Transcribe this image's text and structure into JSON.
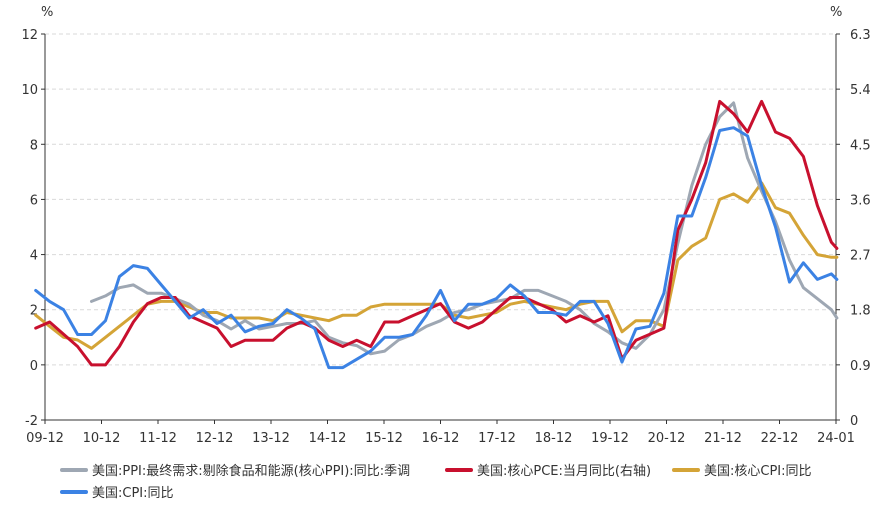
{
  "chart_data": {
    "type": "line",
    "left_axis": {
      "unit": "%",
      "min": -2,
      "max": 12,
      "ticks": [
        "-2",
        "0",
        "2",
        "4",
        "6",
        "8",
        "10",
        "12"
      ]
    },
    "right_axis": {
      "unit": "%",
      "min": 0,
      "max": 6.3,
      "ticks": [
        "0",
        "0.9",
        "1.8",
        "2.7",
        "3.6",
        "4.5",
        "5.4",
        "6.3"
      ]
    },
    "x_labels": [
      "09-12",
      "10-12",
      "11-12",
      "12-12",
      "13-12",
      "14-12",
      "15-12",
      "16-12",
      "17-12",
      "18-12",
      "19-12",
      "20-12",
      "21-12",
      "22-12",
      "24-01"
    ],
    "grid": "horizontal dashed",
    "legend_position": "bottom",
    "series": [
      {
        "name": "美国:PPI:最终需求:剔除食品和能源(核心PPI):同比:季调",
        "color": "#9ea7b3",
        "axis": "left",
        "start": 2010.75,
        "points": [
          [
            2010.75,
            2.3
          ],
          [
            2011.0,
            2.5
          ],
          [
            2011.25,
            2.8
          ],
          [
            2011.5,
            2.9
          ],
          [
            2011.75,
            2.6
          ],
          [
            2012.0,
            2.6
          ],
          [
            2012.25,
            2.4
          ],
          [
            2012.5,
            2.2
          ],
          [
            2012.75,
            1.8
          ],
          [
            2013.0,
            1.6
          ],
          [
            2013.25,
            1.3
          ],
          [
            2013.5,
            1.6
          ],
          [
            2013.75,
            1.3
          ],
          [
            2014.0,
            1.4
          ],
          [
            2014.25,
            1.5
          ],
          [
            2014.5,
            1.5
          ],
          [
            2014.75,
            1.6
          ],
          [
            2015.0,
            1.0
          ],
          [
            2015.25,
            0.8
          ],
          [
            2015.5,
            0.7
          ],
          [
            2015.75,
            0.4
          ],
          [
            2016.0,
            0.5
          ],
          [
            2016.25,
            0.9
          ],
          [
            2016.5,
            1.1
          ],
          [
            2016.75,
            1.4
          ],
          [
            2017.0,
            1.6
          ],
          [
            2017.25,
            1.9
          ],
          [
            2017.5,
            2.0
          ],
          [
            2017.75,
            2.2
          ],
          [
            2018.0,
            2.3
          ],
          [
            2018.25,
            2.4
          ],
          [
            2018.5,
            2.7
          ],
          [
            2018.75,
            2.7
          ],
          [
            2019.0,
            2.5
          ],
          [
            2019.25,
            2.3
          ],
          [
            2019.5,
            2.0
          ],
          [
            2019.75,
            1.5
          ],
          [
            2020.0,
            1.2
          ],
          [
            2020.25,
            0.8
          ],
          [
            2020.5,
            0.6
          ],
          [
            2020.75,
            1.1
          ],
          [
            2021.0,
            2.0
          ],
          [
            2021.25,
            4.4
          ],
          [
            2021.5,
            6.5
          ],
          [
            2021.75,
            8.0
          ],
          [
            2022.0,
            9.0
          ],
          [
            2022.25,
            9.5
          ],
          [
            2022.5,
            7.5
          ],
          [
            2022.75,
            6.3
          ],
          [
            2023.0,
            5.2
          ],
          [
            2023.25,
            3.8
          ],
          [
            2023.5,
            2.8
          ],
          [
            2023.75,
            2.4
          ],
          [
            2024.0,
            2.0
          ],
          [
            2024.1,
            1.7
          ]
        ]
      },
      {
        "name": "美国:核心PCE:当月同比(右轴)",
        "color": "#c8102e",
        "axis": "right",
        "start": 2009.75,
        "points": [
          [
            2009.75,
            1.5
          ],
          [
            2010.0,
            1.6
          ],
          [
            2010.25,
            1.4
          ],
          [
            2010.5,
            1.2
          ],
          [
            2010.75,
            0.9
          ],
          [
            2011.0,
            0.9
          ],
          [
            2011.25,
            1.2
          ],
          [
            2011.5,
            1.6
          ],
          [
            2011.75,
            1.9
          ],
          [
            2012.0,
            2.0
          ],
          [
            2012.25,
            2.0
          ],
          [
            2012.5,
            1.7
          ],
          [
            2012.75,
            1.6
          ],
          [
            2013.0,
            1.5
          ],
          [
            2013.25,
            1.2
          ],
          [
            2013.5,
            1.3
          ],
          [
            2013.75,
            1.3
          ],
          [
            2014.0,
            1.3
          ],
          [
            2014.25,
            1.5
          ],
          [
            2014.5,
            1.6
          ],
          [
            2014.75,
            1.5
          ],
          [
            2015.0,
            1.3
          ],
          [
            2015.25,
            1.2
          ],
          [
            2015.5,
            1.3
          ],
          [
            2015.75,
            1.2
          ],
          [
            2016.0,
            1.6
          ],
          [
            2016.25,
            1.6
          ],
          [
            2016.5,
            1.7
          ],
          [
            2016.75,
            1.8
          ],
          [
            2017.0,
            1.9
          ],
          [
            2017.25,
            1.6
          ],
          [
            2017.5,
            1.5
          ],
          [
            2017.75,
            1.6
          ],
          [
            2018.0,
            1.8
          ],
          [
            2018.25,
            2.0
          ],
          [
            2018.5,
            2.0
          ],
          [
            2018.75,
            1.9
          ],
          [
            2019.0,
            1.8
          ],
          [
            2019.25,
            1.6
          ],
          [
            2019.5,
            1.7
          ],
          [
            2019.75,
            1.6
          ],
          [
            2020.0,
            1.7
          ],
          [
            2020.25,
            1.0
          ],
          [
            2020.5,
            1.3
          ],
          [
            2020.75,
            1.4
          ],
          [
            2021.0,
            1.5
          ],
          [
            2021.25,
            3.1
          ],
          [
            2021.5,
            3.6
          ],
          [
            2021.75,
            4.2
          ],
          [
            2022.0,
            5.2
          ],
          [
            2022.25,
            5.0
          ],
          [
            2022.5,
            4.7
          ],
          [
            2022.75,
            5.2
          ],
          [
            2023.0,
            4.7
          ],
          [
            2023.25,
            4.6
          ],
          [
            2023.5,
            4.3
          ],
          [
            2023.75,
            3.5
          ],
          [
            2024.0,
            2.9
          ],
          [
            2024.1,
            2.8
          ]
        ]
      },
      {
        "name": "美国:核心CPI:同比",
        "color": "#d4a437",
        "axis": "left",
        "start": 2009.75,
        "points": [
          [
            2009.75,
            1.8
          ],
          [
            2010.0,
            1.4
          ],
          [
            2010.25,
            1.0
          ],
          [
            2010.5,
            0.9
          ],
          [
            2010.75,
            0.6
          ],
          [
            2011.0,
            1.0
          ],
          [
            2011.25,
            1.4
          ],
          [
            2011.5,
            1.8
          ],
          [
            2011.75,
            2.2
          ],
          [
            2012.0,
            2.3
          ],
          [
            2012.25,
            2.3
          ],
          [
            2012.5,
            2.1
          ],
          [
            2012.75,
            1.9
          ],
          [
            2013.0,
            1.9
          ],
          [
            2013.25,
            1.7
          ],
          [
            2013.5,
            1.7
          ],
          [
            2013.75,
            1.7
          ],
          [
            2014.0,
            1.6
          ],
          [
            2014.25,
            1.9
          ],
          [
            2014.5,
            1.8
          ],
          [
            2014.75,
            1.7
          ],
          [
            2015.0,
            1.6
          ],
          [
            2015.25,
            1.8
          ],
          [
            2015.5,
            1.8
          ],
          [
            2015.75,
            2.1
          ],
          [
            2016.0,
            2.2
          ],
          [
            2016.25,
            2.2
          ],
          [
            2016.5,
            2.2
          ],
          [
            2016.75,
            2.2
          ],
          [
            2017.0,
            2.2
          ],
          [
            2017.25,
            1.8
          ],
          [
            2017.5,
            1.7
          ],
          [
            2017.75,
            1.8
          ],
          [
            2018.0,
            1.9
          ],
          [
            2018.25,
            2.2
          ],
          [
            2018.5,
            2.3
          ],
          [
            2018.75,
            2.2
          ],
          [
            2019.0,
            2.1
          ],
          [
            2019.25,
            2.0
          ],
          [
            2019.5,
            2.2
          ],
          [
            2019.75,
            2.3
          ],
          [
            2020.0,
            2.3
          ],
          [
            2020.25,
            1.2
          ],
          [
            2020.5,
            1.6
          ],
          [
            2020.75,
            1.6
          ],
          [
            2021.0,
            1.4
          ],
          [
            2021.25,
            3.8
          ],
          [
            2021.5,
            4.3
          ],
          [
            2021.75,
            4.6
          ],
          [
            2022.0,
            6.0
          ],
          [
            2022.25,
            6.2
          ],
          [
            2022.5,
            5.9
          ],
          [
            2022.75,
            6.6
          ],
          [
            2023.0,
            5.7
          ],
          [
            2023.25,
            5.5
          ],
          [
            2023.5,
            4.7
          ],
          [
            2023.75,
            4.0
          ],
          [
            2024.0,
            3.9
          ],
          [
            2024.1,
            3.9
          ]
        ]
      },
      {
        "name": "美国:CPI:同比",
        "color": "#3b82e4",
        "axis": "left",
        "start": 2009.75,
        "points": [
          [
            2009.75,
            2.7
          ],
          [
            2010.0,
            2.3
          ],
          [
            2010.25,
            2.0
          ],
          [
            2010.5,
            1.1
          ],
          [
            2010.75,
            1.1
          ],
          [
            2011.0,
            1.6
          ],
          [
            2011.25,
            3.2
          ],
          [
            2011.5,
            3.6
          ],
          [
            2011.75,
            3.5
          ],
          [
            2012.0,
            2.9
          ],
          [
            2012.25,
            2.3
          ],
          [
            2012.5,
            1.7
          ],
          [
            2012.75,
            2.0
          ],
          [
            2013.0,
            1.5
          ],
          [
            2013.25,
            1.8
          ],
          [
            2013.5,
            1.2
          ],
          [
            2013.75,
            1.4
          ],
          [
            2014.0,
            1.5
          ],
          [
            2014.25,
            2.0
          ],
          [
            2014.5,
            1.7
          ],
          [
            2014.75,
            1.3
          ],
          [
            2015.0,
            -0.1
          ],
          [
            2015.25,
            -0.1
          ],
          [
            2015.5,
            0.2
          ],
          [
            2015.75,
            0.5
          ],
          [
            2016.0,
            1.0
          ],
          [
            2016.25,
            1.0
          ],
          [
            2016.5,
            1.1
          ],
          [
            2016.75,
            1.8
          ],
          [
            2017.0,
            2.7
          ],
          [
            2017.25,
            1.6
          ],
          [
            2017.5,
            2.2
          ],
          [
            2017.75,
            2.2
          ],
          [
            2018.0,
            2.4
          ],
          [
            2018.25,
            2.9
          ],
          [
            2018.5,
            2.5
          ],
          [
            2018.75,
            1.9
          ],
          [
            2019.0,
            1.9
          ],
          [
            2019.25,
            1.8
          ],
          [
            2019.5,
            2.3
          ],
          [
            2019.75,
            2.3
          ],
          [
            2020.0,
            1.5
          ],
          [
            2020.25,
            0.1
          ],
          [
            2020.5,
            1.3
          ],
          [
            2020.75,
            1.4
          ],
          [
            2021.0,
            2.6
          ],
          [
            2021.25,
            5.4
          ],
          [
            2021.5,
            5.4
          ],
          [
            2021.75,
            6.8
          ],
          [
            2022.0,
            8.5
          ],
          [
            2022.25,
            8.6
          ],
          [
            2022.5,
            8.3
          ],
          [
            2022.75,
            6.5
          ],
          [
            2023.0,
            5.0
          ],
          [
            2023.25,
            3.0
          ],
          [
            2023.5,
            3.7
          ],
          [
            2023.75,
            3.1
          ],
          [
            2024.0,
            3.3
          ],
          [
            2024.1,
            3.1
          ]
        ]
      }
    ]
  }
}
